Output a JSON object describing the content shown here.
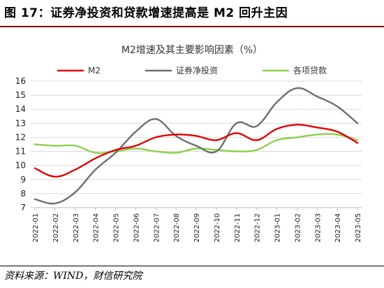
{
  "figure": {
    "title": "图 17：证券净投资和贷款增速提高是 M2 回升主因",
    "source": "资料来源：WIND，财信研究院"
  },
  "colors": {
    "title_rule": "#7f0a0a",
    "m2": "#e00000",
    "securities": "#6e6e6e",
    "loans": "#8cd04a",
    "grid": "#d9d9d9"
  },
  "chart_data": {
    "type": "line",
    "title": "M2增速及其主要影响因素（%）",
    "xlabel": "",
    "ylabel": "",
    "x": [
      "2022-01",
      "2022-02",
      "2022-03",
      "2022-04",
      "2022-05",
      "2022-06",
      "2022-07",
      "2022-08",
      "2022-09",
      "2022-10",
      "2022-11",
      "2022-12",
      "2023-01",
      "2023-02",
      "2023-03",
      "2023-04",
      "2023-05"
    ],
    "ylim": [
      7,
      16
    ],
    "yticks": [
      7,
      8,
      9,
      10,
      11,
      12,
      13,
      14,
      15,
      16
    ],
    "grid": "horizontal",
    "legend_position": "top",
    "series": [
      {
        "name": "M2",
        "color": "#e00000",
        "values": [
          9.8,
          9.2,
          9.7,
          10.5,
          11.1,
          11.4,
          12.0,
          12.2,
          12.1,
          11.8,
          12.3,
          11.8,
          12.6,
          12.9,
          12.7,
          12.4,
          11.6
        ]
      },
      {
        "name": "证券净投资",
        "color": "#6e6e6e",
        "values": [
          7.6,
          7.3,
          8.1,
          9.7,
          10.9,
          12.4,
          13.3,
          12.1,
          11.4,
          11.0,
          13.0,
          12.8,
          14.5,
          15.5,
          14.9,
          14.2,
          13.0
        ]
      },
      {
        "name": "各项贷款",
        "color": "#8cd04a",
        "values": [
          11.5,
          11.4,
          11.4,
          10.9,
          11.0,
          11.2,
          11.0,
          10.9,
          11.2,
          11.1,
          11.0,
          11.1,
          11.8,
          12.0,
          12.2,
          12.2,
          11.8
        ]
      }
    ]
  }
}
